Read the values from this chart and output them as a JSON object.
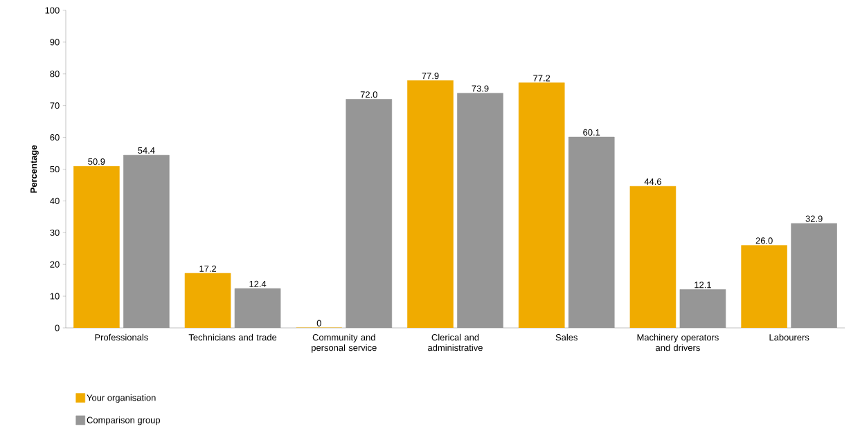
{
  "chart_data": {
    "type": "bar",
    "ylabel": "Percentage",
    "categories": [
      "Professionals",
      "Technicians and trade",
      "Community and personal service",
      "Clerical and administrative",
      "Sales",
      "Machinery operators and drivers",
      "Labourers"
    ],
    "series": [
      {
        "name": "Your organisation",
        "color": "#f0ab00",
        "values": [
          50.9,
          17.2,
          0,
          77.9,
          77.2,
          44.6,
          26.0
        ],
        "value_labels": [
          "50.9",
          "17.2",
          "0",
          "77.9",
          "77.2",
          "44.6",
          "26.0"
        ]
      },
      {
        "name": "Comparison group",
        "color": "#969696",
        "values": [
          54.4,
          12.4,
          72.0,
          73.9,
          60.1,
          12.1,
          32.9
        ],
        "value_labels": [
          "54.4",
          "12.4",
          "72.0",
          "73.9",
          "60.1",
          "12.1",
          "32.9"
        ]
      }
    ],
    "ylim": [
      0,
      100
    ],
    "yticks": [
      0,
      10,
      20,
      30,
      40,
      50,
      60,
      70,
      80,
      90,
      100
    ],
    "grid": false,
    "legend": "bottom left"
  }
}
